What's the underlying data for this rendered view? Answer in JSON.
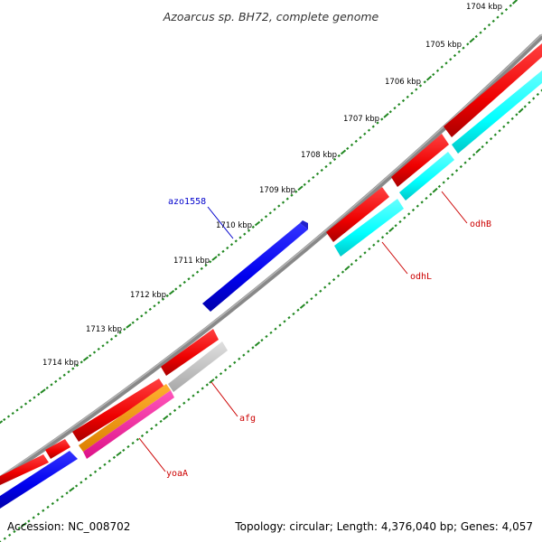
{
  "title": "Azoarcus sp. BH72, complete genome",
  "tick_labels": [
    "1704 kbp",
    "1705 kbp",
    "1706 kbp",
    "1707 kbp",
    "1708 kbp",
    "1709 kbp",
    "1710 kbp",
    "1711 kbp",
    "1712 kbp",
    "1713 kbp",
    "1714 kbp"
  ],
  "gene_labels": {
    "azo1558": "azo1558",
    "odhB": "odhB",
    "odhL": "odhL",
    "afg": "afg",
    "yoaA": "yoaA"
  },
  "footer": {
    "accession": "Accession: NC_008702",
    "topology": "Topology: circular; Length: 4,376,040 bp; Genes: 4,057"
  },
  "colors": {
    "backbone": "#808080",
    "red": "#ff0000",
    "blue": "#0000ff",
    "cyan": "#00ffff",
    "orange": "#ff9900",
    "pink": "#ff33aa",
    "gray": "#c0c0c0",
    "tick_green": "#228822",
    "label_red": "#cc0000",
    "label_blue": "#0000cc"
  }
}
